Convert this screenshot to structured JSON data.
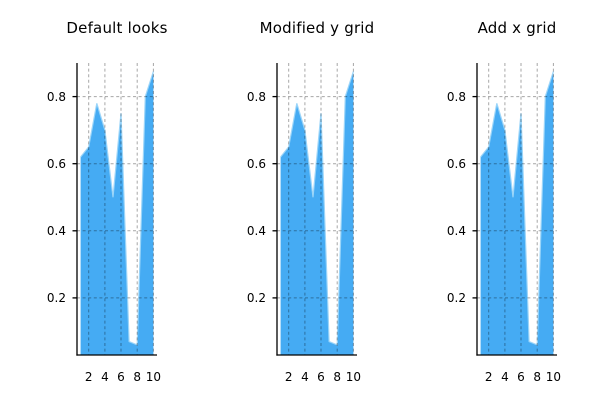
{
  "figure": {
    "background": "#ffffff"
  },
  "chart_data": {
    "type": "area",
    "titles": [
      "Default looks",
      "Modified y grid",
      "Add x grid"
    ],
    "x": [
      1,
      2,
      3,
      4,
      5,
      6,
      7,
      8,
      9,
      10
    ],
    "values": [
      0.62,
      0.65,
      0.78,
      0.7,
      0.5,
      0.75,
      0.07,
      0.06,
      0.8,
      0.875
    ],
    "xlim": [
      0.55,
      10.45
    ],
    "ylim": [
      0.03,
      0.9
    ],
    "x_tick_values": [
      2,
      4,
      6,
      8,
      10
    ],
    "x_tick_labels": [
      "2",
      "4",
      "6",
      "8",
      "10"
    ],
    "y_tick_values": [
      0.2,
      0.4,
      0.6,
      0.8
    ],
    "y_tick_labels": [
      "0.2",
      "0.4",
      "0.6",
      "0.8"
    ],
    "grid": {
      "x": true,
      "y": true,
      "linestyle": "dashed",
      "drawn_over_area": true
    },
    "legend": "none",
    "colors": {
      "fill": "#45abf3",
      "edge": "#9bd5f9",
      "grid": "rgba(0,0,0,0.35)",
      "axis": "#000000",
      "text": "#000000"
    }
  }
}
